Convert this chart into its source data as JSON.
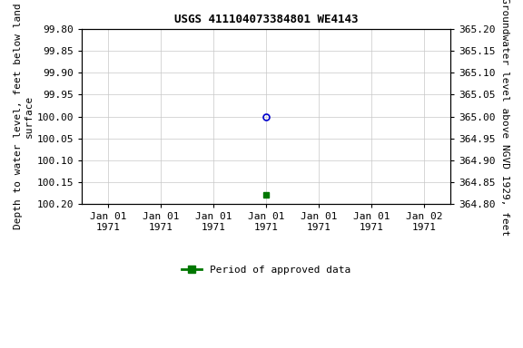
{
  "title": "USGS 411104073384801 WE4143",
  "ylabel_left": "Depth to water level, feet below land\nsurface",
  "ylabel_right": "Groundwater level above NGVD 1929, feet",
  "ylim_left": [
    99.8,
    100.2
  ],
  "ylim_right": [
    365.2,
    364.8
  ],
  "yticks_left": [
    99.8,
    99.85,
    99.9,
    99.95,
    100.0,
    100.05,
    100.1,
    100.15,
    100.2
  ],
  "yticks_right": [
    365.2,
    365.15,
    365.1,
    365.05,
    365.0,
    364.95,
    364.9,
    364.85,
    364.8
  ],
  "xtick_positions": [
    0,
    1,
    2,
    3,
    4,
    5,
    6
  ],
  "xtick_labels": [
    "Jan 01\n1971",
    "Jan 01\n1971",
    "Jan 01\n1971",
    "Jan 01\n1971",
    "Jan 01\n1971",
    "Jan 01\n1971",
    "Jan 02\n1971"
  ],
  "xlim": [
    -0.5,
    6.5
  ],
  "data_points": [
    {
      "x": 3,
      "depth": 100.0,
      "marker": "o",
      "color": "#0000cc",
      "filled": false,
      "ms": 5,
      "mew": 1.2
    },
    {
      "x": 3,
      "depth": 100.18,
      "marker": "s",
      "color": "#007700",
      "filled": true,
      "ms": 4,
      "mew": 1.0
    }
  ],
  "legend_label": "Period of approved data",
  "legend_color": "#007700",
  "bg_color": "#ffffff",
  "plot_bg": "#ffffff",
  "grid_color": "#c8c8c8",
  "font_size": 8,
  "title_font_size": 9,
  "figsize": [
    5.76,
    3.84
  ],
  "dpi": 100
}
